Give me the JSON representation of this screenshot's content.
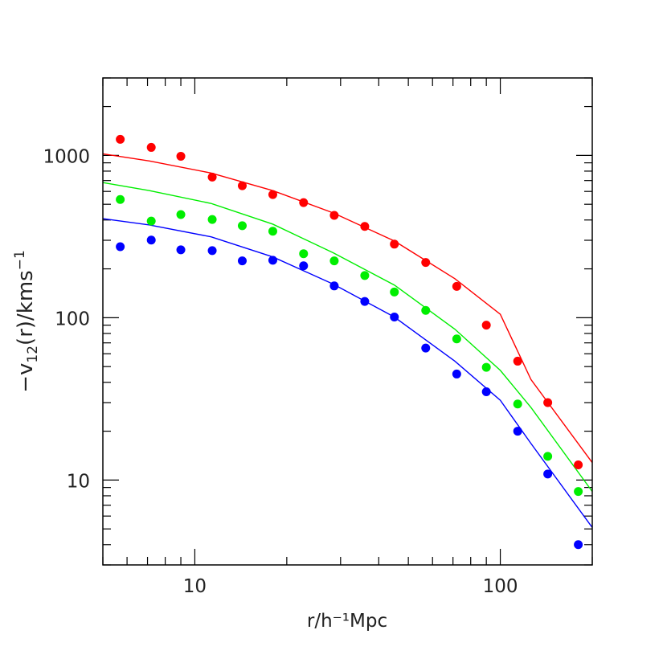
{
  "chart_data": {
    "type": "scatter",
    "xlabel": "r/h⁻¹Mpc",
    "ylabel_main": "−v",
    "ylabel_sub": "12",
    "ylabel_rest": "(r)/kms",
    "ylabel_sup": "−1",
    "xscale": "log",
    "yscale": "log",
    "xlim": [
      5,
      200
    ],
    "ylim": [
      3,
      3000
    ],
    "grid": false,
    "x_ticks": [
      {
        "value": 10,
        "label": "10"
      },
      {
        "value": 100,
        "label": "100"
      }
    ],
    "y_ticks": [
      {
        "value": 10,
        "label": "10"
      },
      {
        "value": 100,
        "label": "100"
      },
      {
        "value": 1000,
        "label": "1000"
      }
    ],
    "points_x": [
      5.7,
      7.2,
      9.0,
      11.4,
      14.3,
      18.0,
      22.7,
      28.6,
      36,
      45,
      57,
      72,
      90,
      114,
      143,
      180
    ],
    "line_x": [
      5.0,
      7.1,
      11.3,
      18.0,
      28.4,
      45,
      71,
      100,
      126,
      200
    ],
    "series": [
      {
        "color": "#ff0000",
        "points": [
          1256,
          1120,
          988,
          735,
          650,
          574,
          512,
          427,
          365,
          284,
          219,
          156,
          90,
          54,
          30,
          12.4
        ],
        "line": [
          1023,
          924,
          779,
          607,
          442,
          297,
          174,
          105,
          41.6,
          12.8
        ]
      },
      {
        "color": "#00ee00",
        "points": [
          535,
          394,
          432,
          403,
          369,
          341,
          248,
          224,
          182,
          144,
          111,
          74,
          49.5,
          29.4,
          14,
          8.5
        ],
        "line": [
          680,
          607,
          506,
          377,
          251,
          159,
          85,
          47.4,
          28,
          8.5
        ]
      },
      {
        "color": "#0000ff",
        "points": [
          274,
          301,
          262,
          259,
          224,
          226,
          209,
          157,
          126,
          101,
          65,
          45,
          35,
          20,
          10.9,
          4.0
        ],
        "line": [
          408,
          373,
          315,
          237,
          161,
          101,
          54,
          31,
          16.8,
          5.1
        ]
      }
    ]
  }
}
